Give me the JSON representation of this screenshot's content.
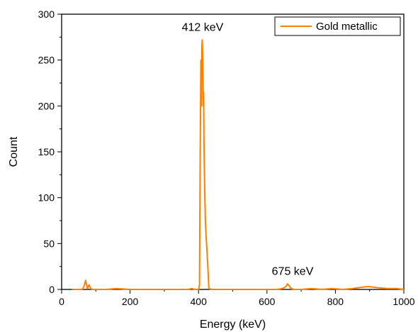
{
  "chart_data": {
    "type": "line",
    "xlabel": "Energy (keV)",
    "ylabel": "Count",
    "xlim": [
      0,
      1000
    ],
    "ylim": [
      0,
      300
    ],
    "x_ticks": [
      0,
      200,
      400,
      600,
      800,
      1000
    ],
    "y_ticks": [
      0,
      50,
      100,
      150,
      200,
      250,
      300
    ],
    "grid": false,
    "legend_position": "top-right",
    "series": [
      {
        "name": "Gold metallic",
        "color": "#ff8000",
        "x": [
          30,
          60,
          65,
          70,
          72,
          75,
          78,
          80,
          85,
          90,
          100,
          130,
          160,
          200,
          250,
          300,
          350,
          370,
          380,
          390,
          400,
          403,
          405,
          407,
          408,
          409,
          410,
          411,
          412,
          413,
          414,
          415,
          416,
          418,
          420,
          422,
          425,
          428,
          430,
          435,
          450,
          500,
          550,
          600,
          630,
          645,
          655,
          660,
          665,
          670,
          680,
          700,
          730,
          760,
          790,
          820,
          850,
          870,
          890,
          900,
          920,
          950,
          980,
          1000
        ],
        "y": [
          0,
          0,
          3,
          10,
          6,
          1,
          3,
          5,
          1,
          0,
          0,
          0,
          1,
          0,
          0,
          0,
          0,
          0,
          1,
          0,
          0,
          5,
          150,
          250,
          200,
          235,
          265,
          272,
          255,
          230,
          200,
          215,
          160,
          110,
          75,
          60,
          40,
          20,
          2,
          0,
          0,
          0,
          0,
          0,
          0,
          1,
          3,
          6,
          4,
          1,
          0,
          0,
          1,
          0,
          1,
          0,
          1,
          2,
          3,
          3,
          2,
          1,
          1,
          0
        ]
      }
    ],
    "annotations": [
      {
        "text": "412 keV",
        "x": 412,
        "y": 282
      },
      {
        "text": "675 keV",
        "x": 675,
        "y": 16
      }
    ]
  }
}
